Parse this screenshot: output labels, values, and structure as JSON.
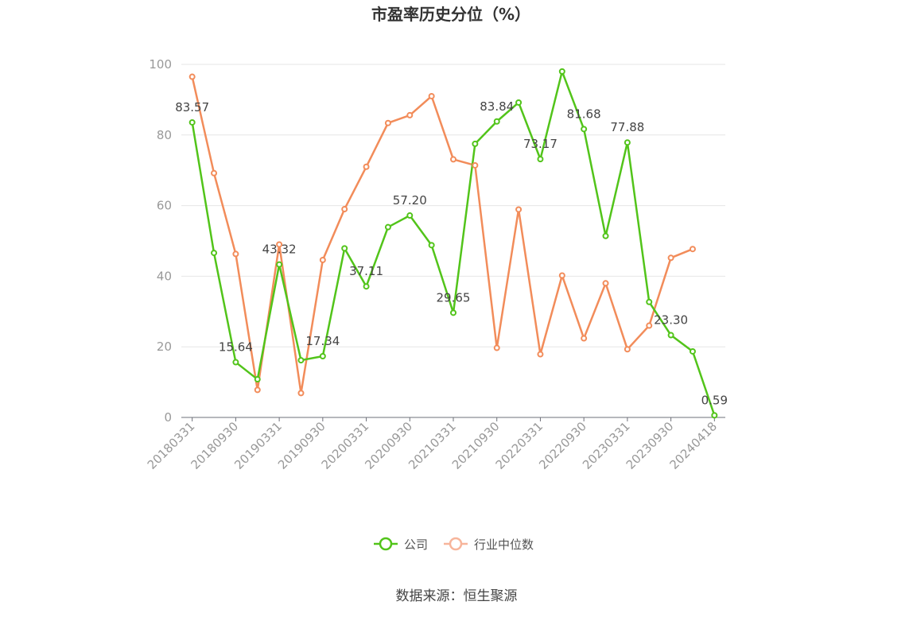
{
  "chart_data": {
    "type": "line",
    "title": "市盈率历史分位（%）",
    "ylim": [
      0,
      100
    ],
    "yticks": [
      0,
      20,
      40,
      60,
      80,
      100
    ],
    "x": [
      "20180331",
      "20180630",
      "20180930",
      "20181231",
      "20190331",
      "20190630",
      "20190930",
      "20191231",
      "20200331",
      "20200630",
      "20200930",
      "20201231",
      "20210331",
      "20210630",
      "20210930",
      "20211231",
      "20220331",
      "20220630",
      "20220930",
      "20221231",
      "20230331",
      "20230630",
      "20230930",
      "20231231",
      "20240418"
    ],
    "xtick_labels": [
      "20180331",
      "20180930",
      "20190331",
      "20190930",
      "20200331",
      "20200930",
      "20210331",
      "20210930",
      "20220331",
      "20220930",
      "20230331",
      "20230930",
      "20240418"
    ],
    "xtick_indices": [
      0,
      2,
      4,
      6,
      8,
      10,
      12,
      14,
      16,
      18,
      20,
      22,
      24
    ],
    "series": [
      {
        "name": "公司",
        "color": "#52c41a",
        "values": [
          83.57,
          46.6,
          15.64,
          10.8,
          43.32,
          16.2,
          17.34,
          47.9,
          37.11,
          53.9,
          57.2,
          48.8,
          29.65,
          77.5,
          83.84,
          89.2,
          73.17,
          98.0,
          81.68,
          51.4,
          77.88,
          32.7,
          23.3,
          18.7,
          0.59
        ]
      },
      {
        "name": "行业中位数",
        "color": "#f28c5a",
        "values": [
          96.5,
          69.2,
          46.3,
          7.8,
          49.0,
          6.9,
          44.6,
          59.0,
          71.0,
          83.4,
          85.6,
          91.0,
          73.1,
          71.4,
          19.7,
          58.9,
          17.9,
          40.2,
          22.4,
          38.0,
          19.3,
          26.0,
          45.2,
          47.7,
          null
        ]
      }
    ],
    "data_labels": [
      {
        "series": 0,
        "index": 0,
        "text": "83.57"
      },
      {
        "series": 0,
        "index": 2,
        "text": "15.64"
      },
      {
        "series": 0,
        "index": 4,
        "text": "43.32"
      },
      {
        "series": 0,
        "index": 6,
        "text": "17.34"
      },
      {
        "series": 0,
        "index": 8,
        "text": "37.11"
      },
      {
        "series": 0,
        "index": 10,
        "text": "57.20"
      },
      {
        "series": 0,
        "index": 12,
        "text": "29.65"
      },
      {
        "series": 0,
        "index": 14,
        "text": "83.84"
      },
      {
        "series": 0,
        "index": 16,
        "text": "73.17"
      },
      {
        "series": 0,
        "index": 18,
        "text": "81.68"
      },
      {
        "series": 0,
        "index": 20,
        "text": "77.88"
      },
      {
        "series": 0,
        "index": 22,
        "text": "23.30"
      },
      {
        "series": 0,
        "index": 24,
        "text": "0.59"
      }
    ],
    "legend": [
      {
        "name": "公司",
        "color": "#52c41a"
      },
      {
        "name": "行业中位数",
        "color": "#f7b59b"
      }
    ],
    "legend_position": "bottom-center",
    "grid": true
  },
  "source": "数据来源：恒生聚源"
}
